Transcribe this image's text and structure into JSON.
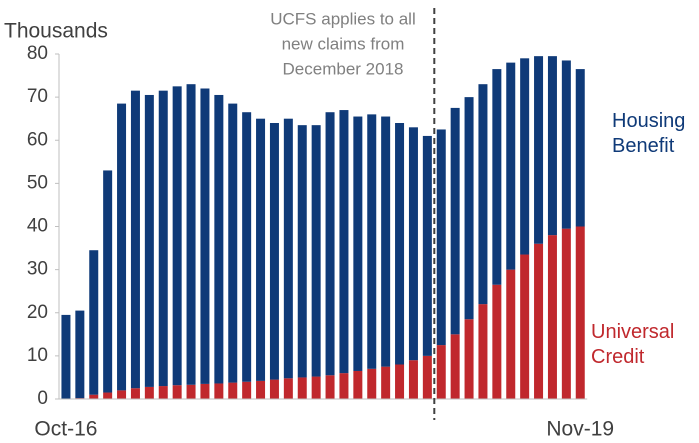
{
  "chart_data": {
    "type": "stacked_bar",
    "y_label": "Thousands",
    "annotation": [
      "UCFS applies to all",
      "new claims from",
      "December 2018"
    ],
    "categories": [
      "Oct-16",
      null,
      null,
      null,
      null,
      null,
      null,
      null,
      null,
      null,
      null,
      null,
      null,
      null,
      null,
      null,
      null,
      null,
      null,
      null,
      null,
      null,
      null,
      null,
      null,
      null,
      null,
      null,
      null,
      null,
      null,
      null,
      null,
      null,
      null,
      null,
      null,
      "Nov-19"
    ],
    "series": [
      {
        "name": "Universal Credit",
        "color": "#c0282d",
        "values": [
          0,
          0.2,
          1,
          1.5,
          2,
          2.5,
          2.8,
          3,
          3.2,
          3.3,
          3.5,
          3.6,
          3.8,
          4,
          4.2,
          4.5,
          4.8,
          5,
          5.2,
          5.5,
          6,
          6.5,
          7,
          7.5,
          8,
          9,
          10,
          12.5,
          15,
          18.5,
          22,
          26.5,
          30,
          33.5,
          36,
          38,
          39.5,
          40
        ]
      },
      {
        "name": "Housing Benefit",
        "color": "#0f3a78",
        "values": [
          19.5,
          20.3,
          33.5,
          51.5,
          66.5,
          69,
          67.7,
          68.5,
          69.3,
          69.7,
          68.5,
          66.9,
          64.7,
          62.5,
          60.8,
          59.5,
          60.2,
          58.5,
          58.3,
          61,
          61,
          59,
          59,
          58,
          56,
          54,
          51,
          50,
          52.5,
          51.5,
          51,
          50,
          48,
          45.5,
          43.5,
          41.5,
          39,
          36.5
        ]
      }
    ],
    "ylim": [
      0,
      80
    ],
    "yticks": [
      0,
      10,
      20,
      30,
      40,
      50,
      60,
      70,
      80
    ],
    "grid": false
  }
}
